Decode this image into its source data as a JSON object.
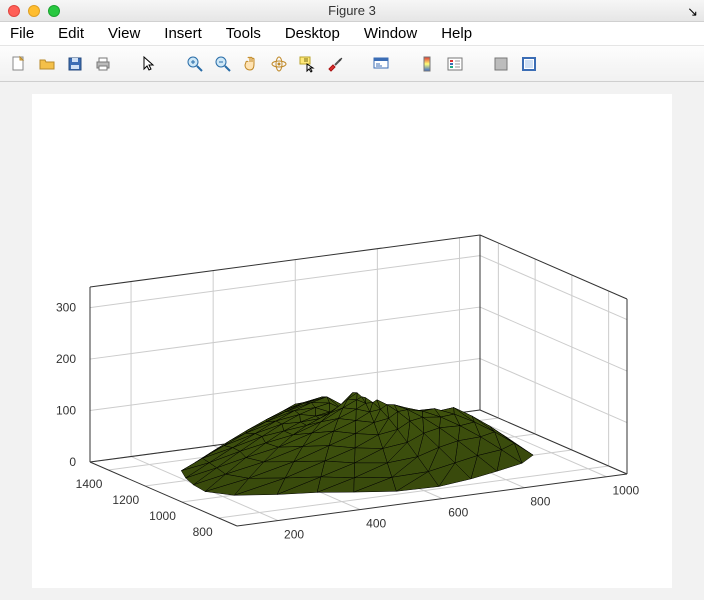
{
  "window": {
    "title": "Figure 3"
  },
  "menu": [
    "File",
    "Edit",
    "View",
    "Insert",
    "Tools",
    "Desktop",
    "Window",
    "Help"
  ],
  "toolbar_icons": [
    {
      "name": "new-file-icon"
    },
    {
      "name": "open-icon"
    },
    {
      "name": "save-icon"
    },
    {
      "name": "print-icon"
    },
    {
      "name": "sep"
    },
    {
      "name": "pointer-icon"
    },
    {
      "name": "sep"
    },
    {
      "name": "zoom-in-icon"
    },
    {
      "name": "zoom-out-icon"
    },
    {
      "name": "pan-icon"
    },
    {
      "name": "rotate3d-icon"
    },
    {
      "name": "datacursor-icon"
    },
    {
      "name": "brush-icon"
    },
    {
      "name": "sep"
    },
    {
      "name": "link-icon"
    },
    {
      "name": "sep"
    },
    {
      "name": "colorbar-icon"
    },
    {
      "name": "legend-icon"
    },
    {
      "name": "sep"
    },
    {
      "name": "hideplot-icon"
    },
    {
      "name": "showplot-icon"
    }
  ],
  "plot3d": {
    "type": "3d-trisurf",
    "surface_color": "#8fbb1f",
    "edge_color": "#000000",
    "background_color": "#ffffff",
    "canvas_background": "#f2f2f2",
    "grid_color": "#cccccc",
    "axis_color": "#333333",
    "tick_fontsize": 12,
    "z": {
      "ticks": [
        0,
        100,
        200,
        300
      ],
      "lim": [
        0,
        340
      ]
    },
    "y": {
      "ticks": [
        800,
        1000,
        1200,
        1400
      ],
      "lim": [
        700,
        1500
      ]
    },
    "x": {
      "ticks": [
        200,
        400,
        600,
        800,
        1000
      ],
      "lim": [
        100,
        1050
      ]
    },
    "view": {
      "azimuth": -37.5,
      "elevation": 30
    }
  }
}
